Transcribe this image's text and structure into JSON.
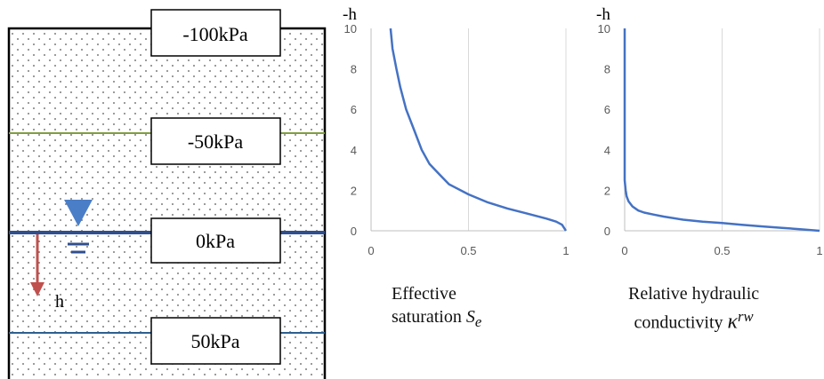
{
  "colors": {
    "curve": "#4472C4",
    "grid": "#d9d9d9",
    "axis_text": "#595959",
    "soil_border": "#000000",
    "level_100": "#000000",
    "level_50_neg": "#7f9f3f",
    "water_table": "#2F4F8F",
    "level_50_pos": "#2F5F8F",
    "arrow": "#C0504D",
    "triangle": "#4A7EC7"
  },
  "soil": {
    "labels": {
      "p_minus100": "-100kPa",
      "p_minus50": "-50kPa",
      "p_zero": "0kPa",
      "p_plus50": "50kPa"
    },
    "h_label": "h",
    "icons": [
      "water-table-triangle-icon",
      "down-arrow-icon"
    ]
  },
  "captions": {
    "left": {
      "line1": "Effective",
      "line2": "saturation ",
      "sym": "S",
      "sub": "e"
    },
    "right": {
      "line1": "Relative hydraulic",
      "line2": "conductivity ",
      "sym": "κ",
      "sup": "rw"
    }
  },
  "chart_data": [
    {
      "type": "line",
      "title": "",
      "xlabel": "",
      "ylabel": "-h",
      "xlim": [
        0,
        1
      ],
      "ylim": [
        0,
        10
      ],
      "xticks": [
        "0",
        "0.5",
        "1"
      ],
      "yticks": [
        "0",
        "2",
        "4",
        "6",
        "8",
        "10"
      ],
      "grid": "vertical",
      "series": [
        {
          "x": [
            0.1,
            0.11,
            0.13,
            0.15,
            0.18,
            0.22,
            0.26,
            0.3,
            0.35,
            0.4,
            0.5,
            0.6,
            0.7,
            0.8,
            0.9,
            0.95,
            0.98,
            1.0
          ],
          "y": [
            10.0,
            9.0,
            8.0,
            7.1,
            6.0,
            5.0,
            4.0,
            3.3,
            2.8,
            2.3,
            1.8,
            1.4,
            1.1,
            0.85,
            0.6,
            0.45,
            0.3,
            0.0
          ]
        }
      ]
    },
    {
      "type": "line",
      "title": "",
      "xlabel": "",
      "ylabel": "-h",
      "xlim": [
        0,
        1
      ],
      "ylim": [
        0,
        10
      ],
      "xticks": [
        "0",
        "0.5",
        "1"
      ],
      "yticks": [
        "0",
        "2",
        "4",
        "6",
        "8",
        "10"
      ],
      "grid": "vertical",
      "series": [
        {
          "x": [
            0.0,
            0.0,
            0.005,
            0.01,
            0.02,
            0.04,
            0.07,
            0.1,
            0.15,
            0.2,
            0.3,
            0.4,
            0.5,
            0.6,
            0.7,
            0.8,
            0.9,
            1.0
          ],
          "y": [
            10.0,
            2.5,
            2.0,
            1.7,
            1.45,
            1.2,
            1.0,
            0.9,
            0.8,
            0.7,
            0.55,
            0.45,
            0.38,
            0.3,
            0.22,
            0.15,
            0.08,
            0.0
          ]
        }
      ]
    }
  ]
}
